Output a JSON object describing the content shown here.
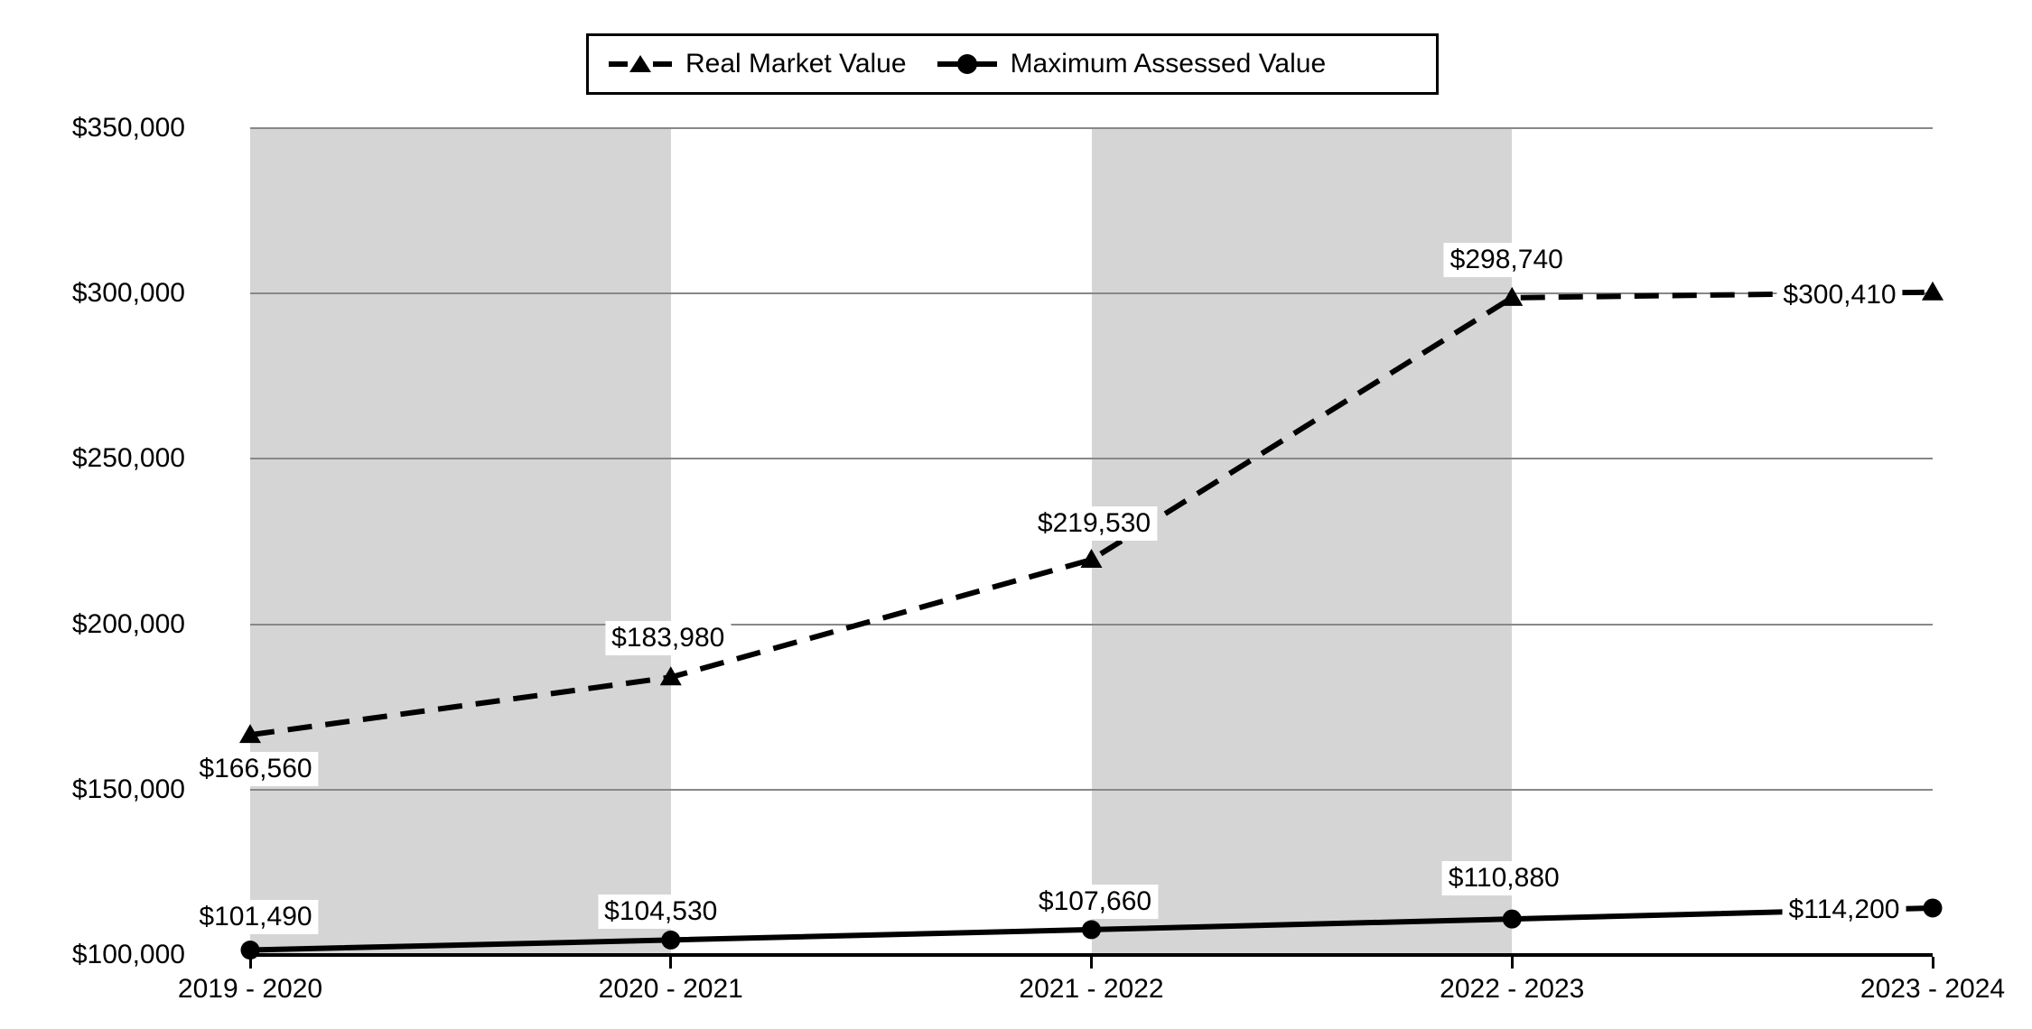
{
  "page": {
    "background": "#ffffff"
  },
  "chart_data": {
    "type": "line",
    "title": "",
    "categories": [
      "2019 - 2020",
      "2020 - 2021",
      "2021 - 2022",
      "2022 - 2023",
      "2023 - 2024"
    ],
    "series": [
      {
        "name": "Real Market Value",
        "line_style": "dashed",
        "marker": "triangle",
        "color": "#000000",
        "values": [
          166560,
          183980,
          219530,
          298740,
          300410
        ],
        "point_labels": [
          "$166,560",
          "$183,980",
          "$219,530",
          "$298,740",
          "$300,410"
        ]
      },
      {
        "name": "Maximum Assessed Value",
        "line_style": "solid",
        "marker": "circle",
        "color": "#000000",
        "values": [
          101490,
          104530,
          107660,
          110880,
          114200
        ],
        "point_labels": [
          "$101,490",
          "$104,530",
          "$107,660",
          "$110,880",
          "$114,200"
        ]
      }
    ],
    "xlabel": "",
    "ylabel": "",
    "ylim": [
      100000,
      350000
    ],
    "y_tick_step": 50000,
    "y_tick_labels": [
      "$100,000",
      "$150,000",
      "$200,000",
      "$250,000",
      "$300,000",
      "$350,000"
    ],
    "grid": true,
    "gridline_color": "#888888",
    "axis_color": "#000000",
    "legend_position": "top",
    "background_bands": {
      "color": "#d5d5d5",
      "category_spans": [
        [
          0,
          1
        ],
        [
          2,
          3
        ]
      ]
    }
  }
}
